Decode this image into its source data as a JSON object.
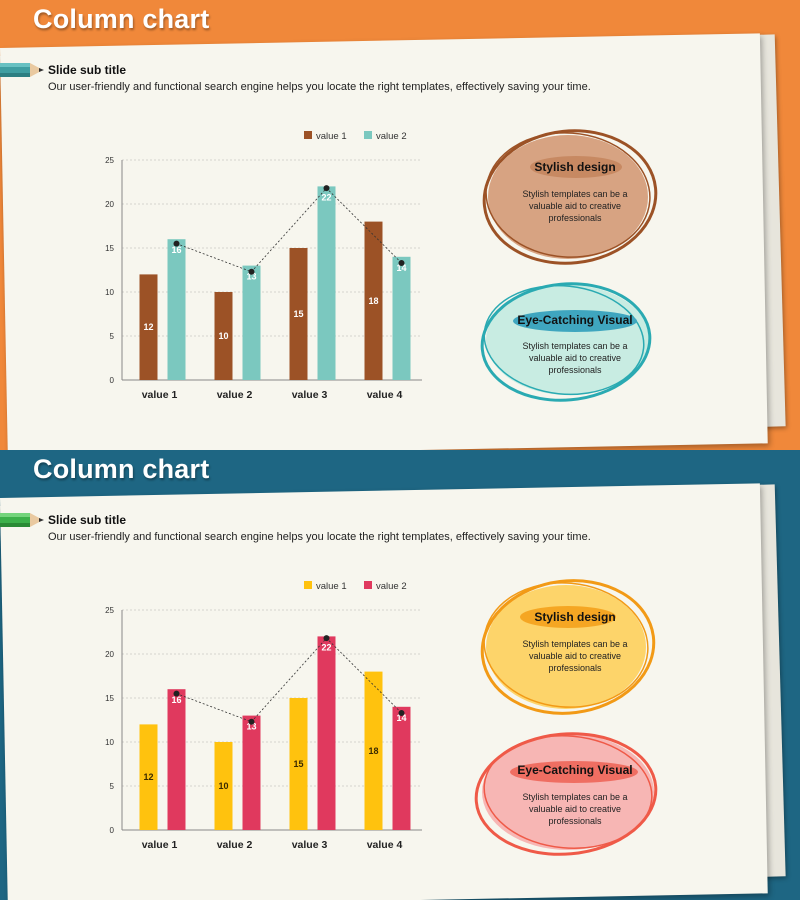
{
  "slides": [
    {
      "title": "Column chart",
      "subtitle": "Slide sub title",
      "description": "Our user-friendly  and functional search engine helps you locate  the right templates, effectively  saving your time.",
      "theme": {
        "background": "#f0883a",
        "color1": "#9c5226",
        "color2": "#7bc8bf",
        "label1": "#ffffff",
        "label2": "#ffffff",
        "pencil": "#3f9ea1"
      },
      "cards": [
        {
          "heading": "Stylish design",
          "text": "Stylish templates can be a valuable aid to creative professionals",
          "fill": "#d7a382",
          "stroke": "#9c5226",
          "marker": "#c78962"
        },
        {
          "heading": "Eye-Catching Visual",
          "text": "Stylish templates can be a valuable aid to creative professionals",
          "fill": "#c8ece2",
          "stroke": "#2aaab2",
          "marker": "#3fa6bf"
        }
      ]
    },
    {
      "title": "Column chart",
      "subtitle": "Slide sub title",
      "description": "Our user-friendly  and functional search engine helps you locate  the right templates, effectively  saving your time.",
      "theme": {
        "background": "#1e6683",
        "color1": "#ffc20e",
        "color2": "#e0395e",
        "label1": "#3a2a00",
        "label2": "#ffffff",
        "pencil": "#3cb04a"
      },
      "cards": [
        {
          "heading": "Stylish design",
          "text": "Stylish templates can be a valuable aid to creative professionals",
          "fill": "#fdd46a",
          "stroke": "#f29a16",
          "marker": "#f5a623"
        },
        {
          "heading": "Eye-Catching Visual",
          "text": "Stylish templates can be a valuable aid to creative professionals",
          "fill": "#f7b6b4",
          "stroke": "#ef5a48",
          "marker": "#ef6e62"
        }
      ]
    }
  ],
  "chart_data": [
    {
      "type": "bar",
      "categories": [
        "value 1",
        "value 2",
        "value 3",
        "value 4"
      ],
      "series": [
        {
          "name": "value 1",
          "values": [
            12,
            10,
            15,
            18
          ]
        },
        {
          "name": "value 2",
          "values": [
            16,
            13,
            22,
            14
          ]
        }
      ],
      "overlay_line": {
        "style": "dashed",
        "values": [
          15.5,
          12.3,
          21.8,
          13.3
        ]
      },
      "ylim": [
        0,
        25
      ],
      "yticks": [
        0,
        5,
        10,
        15,
        20,
        25
      ],
      "grid": true,
      "legend": "top"
    },
    {
      "type": "bar",
      "categories": [
        "value 1",
        "value 2",
        "value 3",
        "value 4"
      ],
      "series": [
        {
          "name": "value 1",
          "values": [
            12,
            10,
            15,
            18
          ]
        },
        {
          "name": "value 2",
          "values": [
            16,
            13,
            22,
            14
          ]
        }
      ],
      "overlay_line": {
        "style": "dashed",
        "values": [
          15.5,
          12.3,
          21.8,
          13.3
        ]
      },
      "ylim": [
        0,
        25
      ],
      "yticks": [
        0,
        5,
        10,
        15,
        20,
        25
      ],
      "grid": true,
      "legend": "top"
    }
  ]
}
